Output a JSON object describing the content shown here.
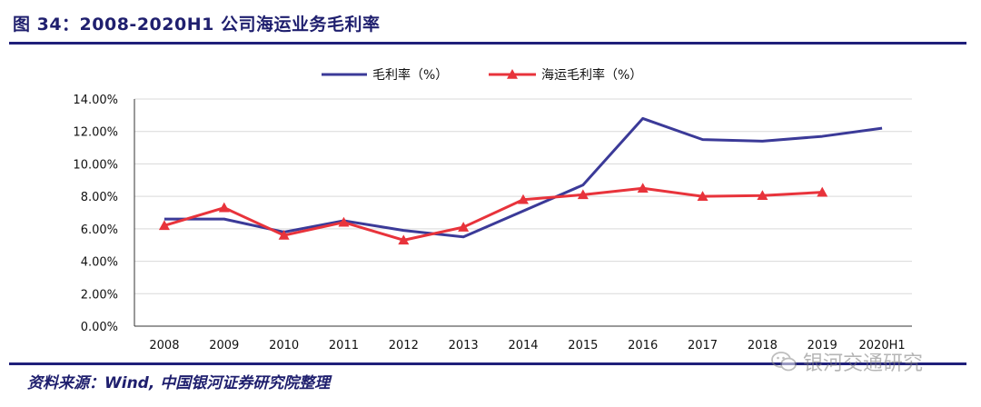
{
  "header": {
    "title": "图 34：2008-2020H1 公司海运业务毛利率"
  },
  "footer": {
    "source": "资料来源：Wind, 中国银河证券研究院整理",
    "watermark_text": "银河交通研究",
    "watermark_icon": "wechat-icon"
  },
  "colors": {
    "rule": "#1f1f7a",
    "series1": "#3b3a98",
    "series2": "#e8333b",
    "grid": "#d9d9d9"
  },
  "chart_data": {
    "type": "line",
    "title": "",
    "xlabel": "",
    "ylabel": "",
    "ylim": [
      0,
      14
    ],
    "y_ticks": [
      "0.00%",
      "2.00%",
      "4.00%",
      "6.00%",
      "8.00%",
      "10.00%",
      "12.00%",
      "14.00%"
    ],
    "y_tick_values": [
      0,
      2,
      4,
      6,
      8,
      10,
      12,
      14
    ],
    "categories": [
      "2008",
      "2009",
      "2010",
      "2011",
      "2012",
      "2013",
      "2014",
      "2015",
      "2016",
      "2017",
      "2018",
      "2019",
      "2020H1"
    ],
    "grid": true,
    "legend_position": "top-center",
    "series": [
      {
        "name": "毛利率（%）",
        "marker": "none",
        "color": "#3b3a98",
        "values": [
          6.6,
          6.6,
          5.8,
          6.5,
          5.9,
          5.5,
          7.1,
          8.7,
          12.8,
          11.5,
          11.4,
          11.7,
          12.2
        ]
      },
      {
        "name": "海运毛利率（%）",
        "marker": "triangle",
        "color": "#e8333b",
        "values": [
          6.2,
          7.3,
          5.6,
          6.4,
          5.3,
          6.1,
          7.8,
          8.1,
          8.5,
          8.0,
          8.05,
          8.25,
          null
        ]
      }
    ]
  }
}
